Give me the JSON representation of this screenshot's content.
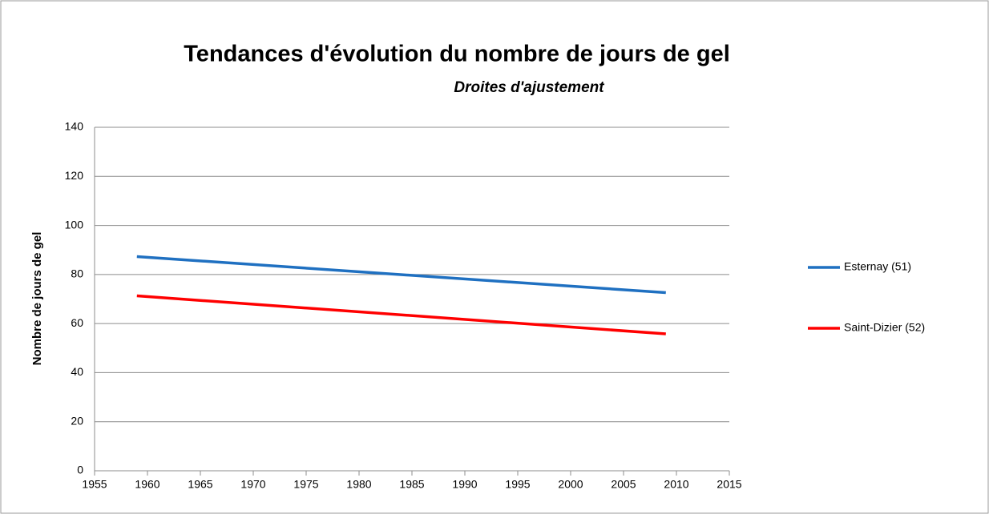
{
  "chart_data": {
    "type": "line",
    "title": "Tendances d'évolution du nombre de jours de gel",
    "subtitle": "Droites d'ajustement",
    "y_label": "Nombre de jours de gel",
    "x": [
      1959,
      2009
    ],
    "series": [
      {
        "name": "Esternay (51)",
        "color": "#1f70c1",
        "values": [
          87.3,
          72.6
        ]
      },
      {
        "name": "Saint-Dizier (52)",
        "color": "#ff0000",
        "values": [
          71.3,
          55.8
        ]
      }
    ],
    "xlim": [
      1955,
      2015
    ],
    "xticks": [
      1955,
      1960,
      1965,
      1970,
      1975,
      1980,
      1985,
      1990,
      1995,
      2000,
      2005,
      2010,
      2015
    ],
    "ylim": [
      0,
      140
    ],
    "yticks": [
      0,
      20,
      40,
      60,
      80,
      100,
      120,
      140
    ],
    "grid": true,
    "legend": "right"
  }
}
